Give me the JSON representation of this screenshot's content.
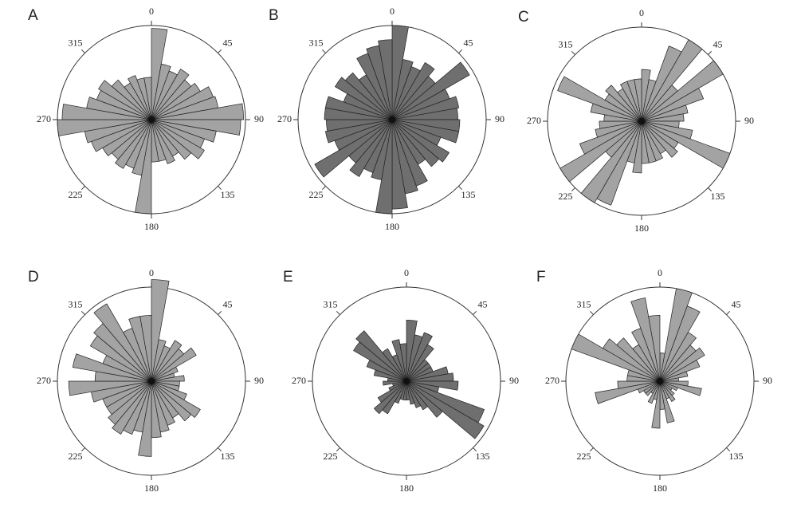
{
  "chart_data": [
    {
      "type": "rose",
      "title": "A",
      "color": "#a3a3a3",
      "rlim": [
        0,
        100
      ],
      "thetaticks": [
        0,
        45,
        90,
        135,
        180,
        225,
        270,
        315
      ],
      "values": [
        97,
        60,
        55,
        62,
        55,
        60,
        70,
        72,
        98,
        95,
        70,
        60,
        65,
        55,
        45,
        50,
        45,
        45,
        100,
        60,
        55,
        60,
        55,
        60,
        68,
        72,
        100,
        95,
        70,
        62,
        65,
        55,
        45,
        50,
        45,
        45
      ]
    },
    {
      "type": "rose",
      "title": "B",
      "color": "#6f6f6f",
      "rlim": [
        0,
        100
      ],
      "thetaticks": [
        0,
        45,
        90,
        135,
        180,
        225,
        270,
        315
      ],
      "values": [
        100,
        65,
        60,
        70,
        60,
        95,
        65,
        72,
        70,
        72,
        72,
        55,
        70,
        65,
        55,
        75,
        80,
        95,
        100,
        65,
        60,
        70,
        60,
        95,
        65,
        72,
        70,
        72,
        72,
        55,
        70,
        65,
        55,
        75,
        80,
        85
      ]
    },
    {
      "type": "rose",
      "title": "C",
      "color": "#a3a3a3",
      "rlim": [
        0,
        100
      ],
      "thetaticks": [
        0,
        45,
        90,
        135,
        180,
        225,
        270,
        315
      ],
      "values": [
        55,
        45,
        85,
        100,
        50,
        100,
        70,
        50,
        45,
        40,
        55,
        100,
        45,
        50,
        40,
        45,
        45,
        45,
        55,
        45,
        95,
        100,
        50,
        100,
        70,
        50,
        45,
        40,
        55,
        95,
        45,
        50,
        40,
        45,
        45,
        45
      ]
    },
    {
      "type": "rose",
      "title": "D",
      "color": "#a3a3a3",
      "rlim": [
        0,
        100
      ],
      "thetaticks": [
        0,
        45,
        90,
        135,
        180,
        225,
        270,
        315
      ],
      "values": [
        108,
        45,
        40,
        50,
        45,
        55,
        30,
        25,
        35,
        30,
        30,
        40,
        60,
        55,
        45,
        50,
        55,
        60,
        80,
        55,
        60,
        65,
        60,
        55,
        55,
        65,
        88,
        60,
        85,
        55,
        75,
        80,
        95,
        60,
        70,
        70
      ]
    },
    {
      "type": "rose",
      "title": "E",
      "color": "#6f6f6f",
      "rlim": [
        0,
        100
      ],
      "thetaticks": [
        0,
        45,
        90,
        135,
        180,
        225,
        270,
        315
      ],
      "values": [
        65,
        50,
        55,
        45,
        30,
        30,
        30,
        45,
        50,
        55,
        35,
        88,
        95,
        50,
        35,
        30,
        25,
        20,
        20,
        20,
        25,
        40,
        45,
        35,
        20,
        15,
        25,
        20,
        35,
        45,
        65,
        70,
        40,
        30,
        45,
        40
      ]
    },
    {
      "type": "rose",
      "title": "F",
      "color": "#a3a3a3",
      "rlim": [
        0,
        100
      ],
      "thetaticks": [
        0,
        45,
        90,
        135,
        180,
        225,
        270,
        315
      ],
      "values": [
        30,
        100,
        85,
        60,
        50,
        55,
        45,
        30,
        20,
        30,
        45,
        20,
        15,
        20,
        25,
        20,
        45,
        30,
        50,
        20,
        25,
        15,
        20,
        20,
        25,
        70,
        45,
        35,
        35,
        100,
        70,
        60,
        45,
        60,
        90,
        70
      ]
    }
  ]
}
